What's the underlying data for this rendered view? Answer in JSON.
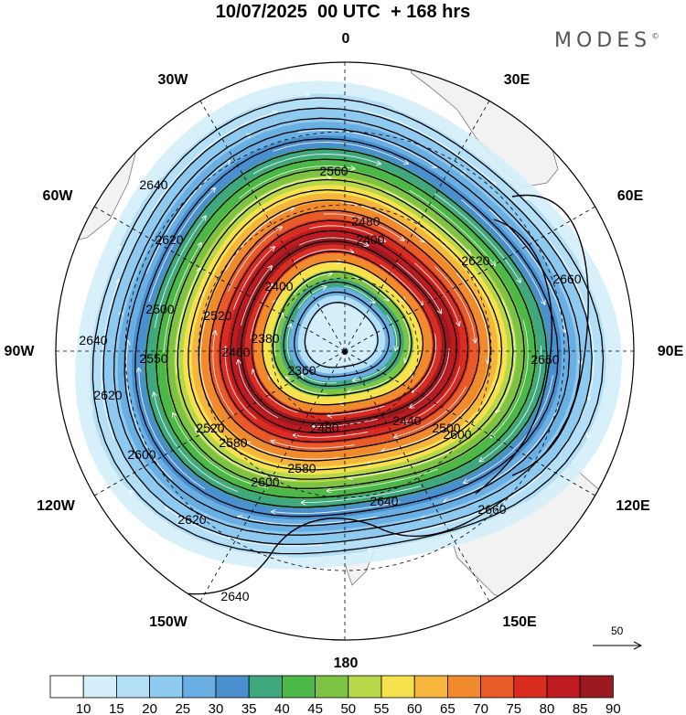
{
  "title": "10/07/2025  00 UTC  + 168 hrs",
  "brand": "MODES",
  "brand_mark": "©",
  "longitude_labels": {
    "n0": "0",
    "n30e": "30E",
    "n60e": "60E",
    "n90e": "90E",
    "n120e": "120E",
    "n150e": "150E",
    "n180": "180",
    "n150w": "150W",
    "n120w": "120W",
    "n90w": "90W",
    "n60w": "60W",
    "n30w": "30W"
  },
  "vector_reference": "50",
  "contour_labels": [
    "2360",
    "2380",
    "2400",
    "2400",
    "2440",
    "2480",
    "2480",
    "2500",
    "2520",
    "2520",
    "2560",
    "2580",
    "2580",
    "2600",
    "2600",
    "2600",
    "2620",
    "2620",
    "2620",
    "2620",
    "2640",
    "2640",
    "2640",
    "2640",
    "2660",
    "2660",
    "2660",
    "2460",
    "2550",
    "2500"
  ],
  "colorbar": {
    "labels": [
      "10",
      "15",
      "20",
      "25",
      "30",
      "35",
      "40",
      "45",
      "50",
      "55",
      "60",
      "65",
      "70",
      "75",
      "80",
      "85",
      "90"
    ],
    "colors": [
      "#ffffff",
      "#d4eefa",
      "#b3e0f7",
      "#8ecaef",
      "#6aafe3",
      "#4a90cf",
      "#3fa87f",
      "#4cb848",
      "#7ec444",
      "#b8d84a",
      "#f7e14c",
      "#f6b53c",
      "#f08a2c",
      "#e85a28",
      "#d92d22",
      "#bf1a20",
      "#9b1a20"
    ]
  },
  "colors": {
    "land": "#f2f2f2",
    "coast": "#777777",
    "contour": "#000000",
    "streamline": "#ffffff"
  }
}
